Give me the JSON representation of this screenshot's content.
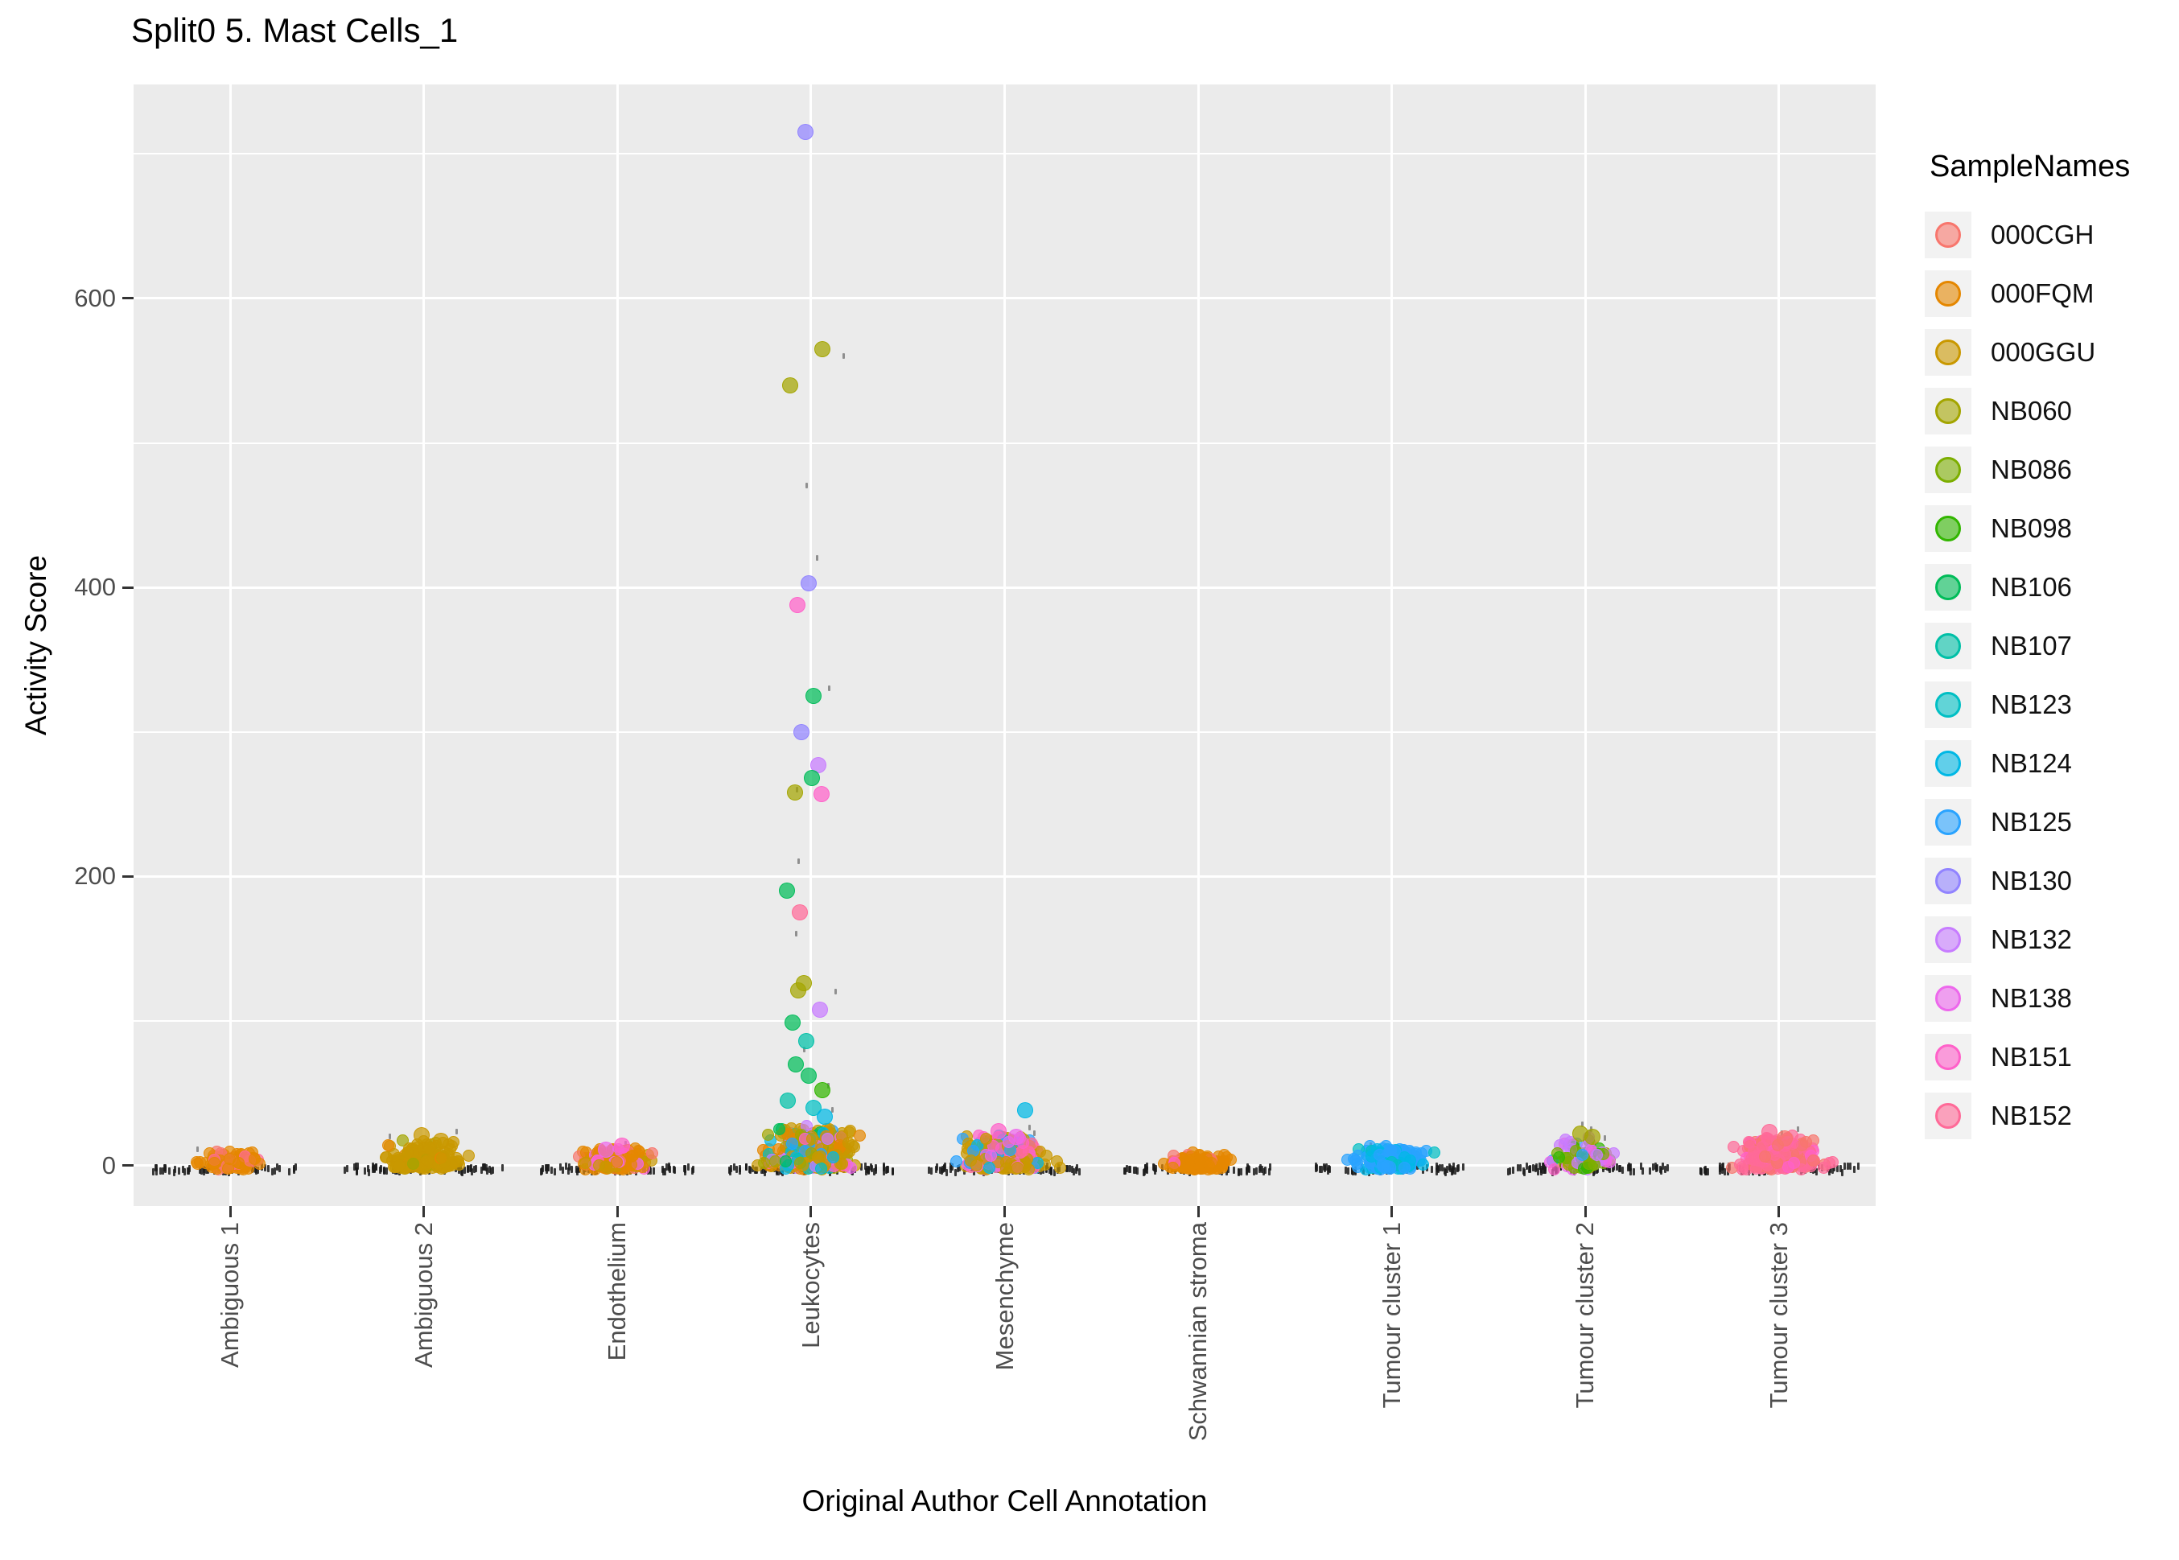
{
  "title": "Split0 5. Mast Cells_1",
  "x_axis": {
    "label": "Original Author Cell Annotation"
  },
  "y_axis": {
    "label": "Activity Score",
    "ticks": [
      0,
      200,
      400,
      600
    ],
    "minor_ticks": [
      100,
      300,
      500,
      700
    ]
  },
  "legend": {
    "title": "SampleNames",
    "position": "right",
    "items": [
      {
        "name": "000CGH",
        "color": "#F8766D"
      },
      {
        "name": "000FQM",
        "color": "#E58700"
      },
      {
        "name": "000GGU",
        "color": "#C99800"
      },
      {
        "name": "NB060",
        "color": "#A3A500"
      },
      {
        "name": "NB086",
        "color": "#7CAE00"
      },
      {
        "name": "NB098",
        "color": "#32B600"
      },
      {
        "name": "NB106",
        "color": "#00BC59"
      },
      {
        "name": "NB107",
        "color": "#00C0A7"
      },
      {
        "name": "NB123",
        "color": "#00BFC4"
      },
      {
        "name": "NB124",
        "color": "#00B8E5"
      },
      {
        "name": "NB125",
        "color": "#29A3FF"
      },
      {
        "name": "NB130",
        "color": "#9183FF"
      },
      {
        "name": "NB132",
        "color": "#C77CFF"
      },
      {
        "name": "NB138",
        "color": "#ED68EC"
      },
      {
        "name": "NB151",
        "color": "#FF61C9"
      },
      {
        "name": "NB152",
        "color": "#FF6A98"
      }
    ]
  },
  "colors": {
    "panel_bg": "#EBEBEB",
    "grid": "#FFFFFF",
    "axis_text": "#4D4D4D",
    "tick_mark": "#333333",
    "title_text": "#000000",
    "legend_key_bg": "#F2F2F2",
    "base_mark": "#1A1A1A"
  },
  "chart_data": {
    "type": "scatter",
    "subtype": "jitter-strip",
    "grid": "on",
    "y_range": [
      -28,
      748
    ],
    "categories": [
      "Ambiguous 1",
      "Ambiguous 2",
      "Endothelium",
      "Leukocytes",
      "Mesenchyme",
      "Schwannian stroma",
      "Tumour cluster 1",
      "Tumour cluster 2",
      "Tumour cluster 3"
    ],
    "clusters": [
      {
        "category": "Ambiguous 1",
        "count": 120,
        "y_max": 9,
        "x_spread": 0.42,
        "samples": {
          "000FQM": 0.78,
          "000CGH": 0.15,
          "NB152": 0.07
        },
        "black": {
          "count": 60,
          "x_spread": 0.8,
          "strays": [
            11
          ]
        }
      },
      {
        "category": "Ambiguous 2",
        "count": 200,
        "y_max": 15,
        "x_spread": 0.5,
        "samples": {
          "000GGU": 0.88,
          "NB060": 0.07,
          "000FQM": 0.05
        },
        "black": {
          "count": 70,
          "x_spread": 0.82,
          "strays": [
            20,
            23
          ]
        }
      },
      {
        "category": "Endothelium",
        "count": 170,
        "y_max": 11,
        "x_spread": 0.48,
        "samples": {
          "000FQM": 0.42,
          "000GGU": 0.3,
          "NB151": 0.1,
          "NB138": 0.08,
          "000CGH": 0.1
        },
        "black": {
          "count": 70,
          "x_spread": 0.8,
          "strays": [
            15,
            12
          ]
        }
      },
      {
        "category": "Leukocytes",
        "count": 320,
        "y_max": 26,
        "x_spread": 0.66,
        "samples": {
          "000GGU": 0.42,
          "000FQM": 0.14,
          "NB060": 0.09,
          "NB124": 0.06,
          "NB125": 0.05,
          "NB132": 0.06,
          "NB138": 0.05,
          "NB151": 0.05,
          "NB106": 0.04,
          "NB123": 0.04
        },
        "black": {
          "count": 80,
          "x_spread": 0.85,
          "strays": [
            38,
            55,
            80,
            120,
            160,
            210,
            260,
            330,
            420,
            470,
            560
          ]
        }
      },
      {
        "category": "Mesenchyme",
        "count": 260,
        "y_max": 19,
        "x_spread": 0.6,
        "samples": {
          "000GGU": 0.52,
          "NB151": 0.13,
          "NB152": 0.1,
          "NB125": 0.09,
          "NB138": 0.09,
          "NB124": 0.07
        },
        "black": {
          "count": 70,
          "x_spread": 0.82,
          "strays": [
            26,
            22
          ]
        }
      },
      {
        "category": "Schwannian stroma",
        "count": 170,
        "y_max": 6,
        "x_spread": 0.45,
        "samples": {
          "000FQM": 0.9,
          "000CGH": 0.06,
          "NB151": 0.04
        },
        "black": {
          "count": 60,
          "x_spread": 0.78,
          "strays": []
        }
      },
      {
        "category": "Tumour cluster 1",
        "count": 150,
        "y_max": 12,
        "x_spread": 0.5,
        "samples": {
          "NB125": 0.68,
          "NB124": 0.22,
          "NB123": 0.1
        },
        "black": {
          "count": 60,
          "x_spread": 0.8,
          "strays": [
            14
          ]
        }
      },
      {
        "category": "Tumour cluster 2",
        "count": 90,
        "y_max": 17,
        "x_spread": 0.45,
        "samples": {
          "NB060": 0.24,
          "NB086": 0.2,
          "NB098": 0.12,
          "NB132": 0.16,
          "NB138": 0.12,
          "NB151": 0.08,
          "NB125": 0.08
        },
        "black": {
          "count": 75,
          "x_spread": 0.85,
          "strays": [
            16,
            19,
            22,
            25,
            28,
            14
          ]
        }
      },
      {
        "category": "Tumour cluster 3",
        "count": 260,
        "y_max": 19,
        "x_spread": 0.6,
        "samples": {
          "NB152": 0.55,
          "000CGH": 0.35,
          "NB151": 0.1
        },
        "black": {
          "count": 70,
          "x_spread": 0.84,
          "strays": [
            22,
            17,
            25
          ]
        }
      }
    ],
    "outliers": [
      {
        "category": "Leukocytes",
        "sample": "NB130",
        "y": 715,
        "dx": -0.05
      },
      {
        "category": "Leukocytes",
        "sample": "NB060",
        "y": 565,
        "dx": 0.1
      },
      {
        "category": "Leukocytes",
        "sample": "NB060",
        "y": 540,
        "dx": -0.18
      },
      {
        "category": "Leukocytes",
        "sample": "NB130",
        "y": 403,
        "dx": -0.02
      },
      {
        "category": "Leukocytes",
        "sample": "NB151",
        "y": 388,
        "dx": -0.12
      },
      {
        "category": "Leukocytes",
        "sample": "NB106",
        "y": 325,
        "dx": 0.02
      },
      {
        "category": "Leukocytes",
        "sample": "NB130",
        "y": 300,
        "dx": -0.08
      },
      {
        "category": "Leukocytes",
        "sample": "NB132",
        "y": 277,
        "dx": 0.06
      },
      {
        "category": "Leukocytes",
        "sample": "NB106",
        "y": 268,
        "dx": 0.01
      },
      {
        "category": "Leukocytes",
        "sample": "NB151",
        "y": 257,
        "dx": 0.09
      },
      {
        "category": "Leukocytes",
        "sample": "NB060",
        "y": 258,
        "dx": -0.14
      },
      {
        "category": "Leukocytes",
        "sample": "NB106",
        "y": 190,
        "dx": -0.21
      },
      {
        "category": "Leukocytes",
        "sample": "NB152",
        "y": 175,
        "dx": -0.1
      },
      {
        "category": "Leukocytes",
        "sample": "NB060",
        "y": 126,
        "dx": -0.06
      },
      {
        "category": "Leukocytes",
        "sample": "NB060",
        "y": 121,
        "dx": -0.11
      },
      {
        "category": "Leukocytes",
        "sample": "NB132",
        "y": 108,
        "dx": 0.08
      },
      {
        "category": "Leukocytes",
        "sample": "NB106",
        "y": 99,
        "dx": -0.16
      },
      {
        "category": "Leukocytes",
        "sample": "NB107",
        "y": 86,
        "dx": -0.04
      },
      {
        "category": "Leukocytes",
        "sample": "NB106",
        "y": 70,
        "dx": -0.13
      },
      {
        "category": "Leukocytes",
        "sample": "NB106",
        "y": 62,
        "dx": -0.02
      },
      {
        "category": "Leukocytes",
        "sample": "NB098",
        "y": 52,
        "dx": 0.1
      },
      {
        "category": "Leukocytes",
        "sample": "NB107",
        "y": 45,
        "dx": -0.2
      },
      {
        "category": "Leukocytes",
        "sample": "NB123",
        "y": 40,
        "dx": 0.02
      },
      {
        "category": "Leukocytes",
        "sample": "NB124",
        "y": 34,
        "dx": 0.12
      },
      {
        "category": "Mesenchyme",
        "sample": "NB124",
        "y": 38,
        "dx": 0.18
      },
      {
        "category": "Mesenchyme",
        "sample": "NB151",
        "y": 24,
        "dx": -0.05
      },
      {
        "category": "Mesenchyme",
        "sample": "NB138",
        "y": 20,
        "dx": 0.1
      },
      {
        "category": "Ambiguous 2",
        "sample": "000GGU",
        "y": 21,
        "dx": -0.02
      },
      {
        "category": "Ambiguous 2",
        "sample": "000GGU",
        "y": 17,
        "dx": 0.15
      },
      {
        "category": "Tumour cluster 2",
        "sample": "NB060",
        "y": 22,
        "dx": -0.04
      },
      {
        "category": "Tumour cluster 2",
        "sample": "NB060",
        "y": 20,
        "dx": 0.06
      },
      {
        "category": "Tumour cluster 3",
        "sample": "NB152",
        "y": 23,
        "dx": -0.08
      },
      {
        "category": "Tumour cluster 3",
        "sample": "000CGH",
        "y": 19,
        "dx": 0.05
      },
      {
        "category": "Endothelium",
        "sample": "NB151",
        "y": 14,
        "dx": 0.04
      },
      {
        "category": "Endothelium",
        "sample": "NB138",
        "y": 11,
        "dx": -0.1
      }
    ]
  }
}
